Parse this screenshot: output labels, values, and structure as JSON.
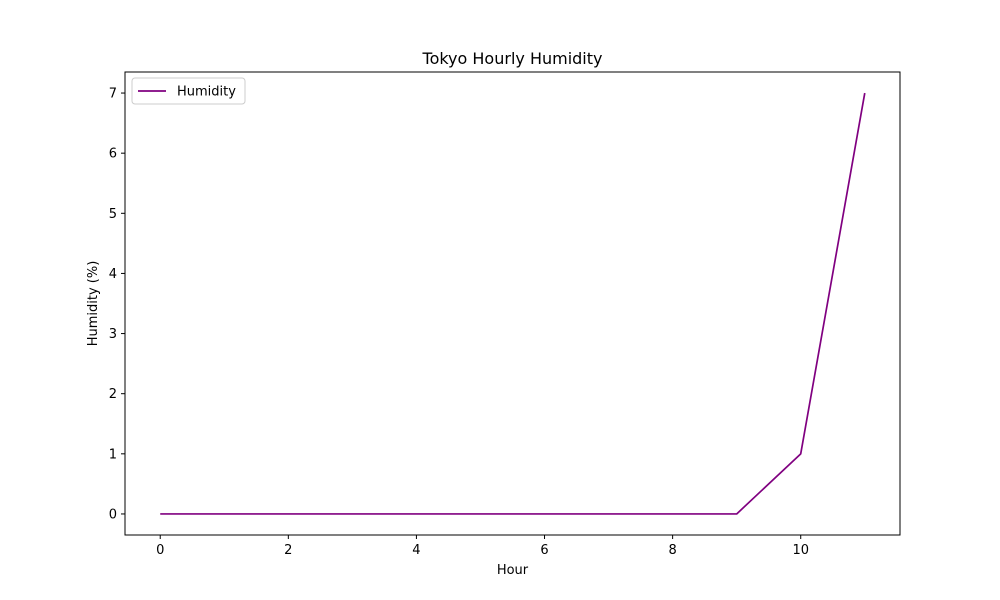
{
  "chart_data": {
    "type": "line",
    "title": "Tokyo Hourly Humidity",
    "xlabel": "Hour",
    "ylabel": "Humidity (%)",
    "x": [
      0,
      1,
      2,
      3,
      4,
      5,
      6,
      7,
      8,
      9,
      10,
      11
    ],
    "series": [
      {
        "name": "Humidity",
        "color": "#800080",
        "values": [
          0,
          0,
          0,
          0,
          0,
          0,
          0,
          0,
          0,
          0,
          1,
          7
        ]
      }
    ],
    "xlim": [
      -0.55,
      11.55
    ],
    "ylim": [
      -0.35,
      7.35
    ],
    "xticks": [
      "0",
      "2",
      "4",
      "6",
      "8",
      "10"
    ],
    "yticks": [
      "0",
      "1",
      "2",
      "3",
      "4",
      "5",
      "6",
      "7"
    ],
    "grid": false,
    "legend_position": "top-left"
  }
}
